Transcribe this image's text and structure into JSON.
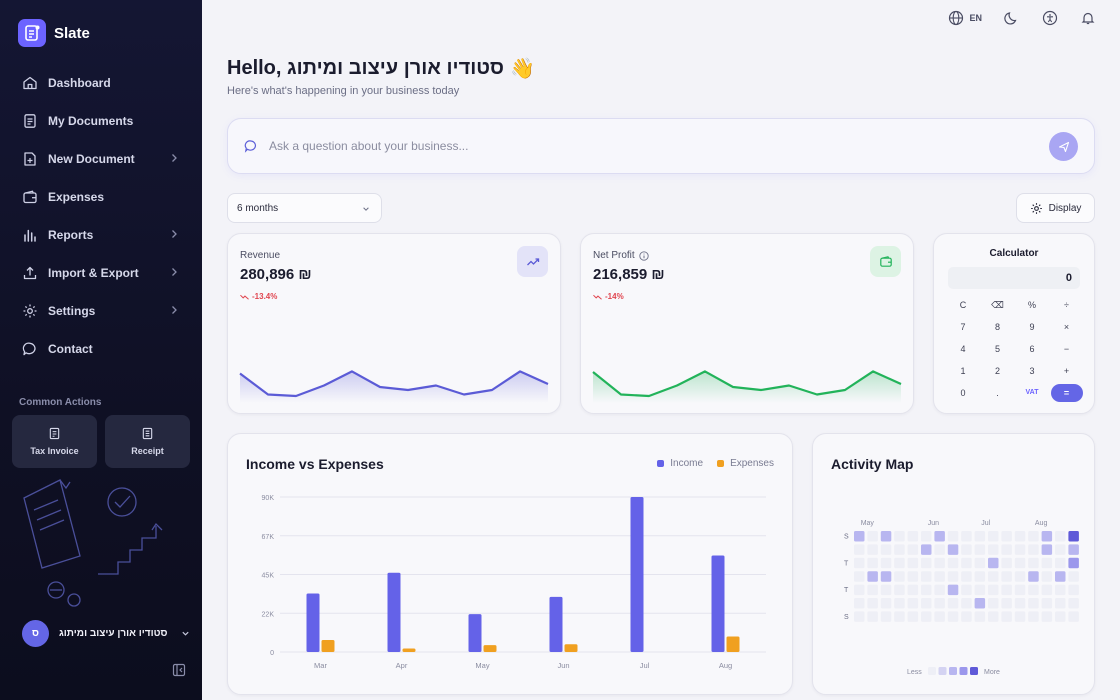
{
  "app": {
    "name": "Slate"
  },
  "sidebar": {
    "items": [
      {
        "label": "Dashboard",
        "icon": "home-icon",
        "chevron": false
      },
      {
        "label": "My Documents",
        "icon": "document-icon",
        "chevron": false
      },
      {
        "label": "New Document",
        "icon": "file-plus-icon",
        "chevron": true
      },
      {
        "label": "Expenses",
        "icon": "wallet-icon",
        "chevron": false
      },
      {
        "label": "Reports",
        "icon": "bar-chart-icon",
        "chevron": true
      },
      {
        "label": "Import & Export",
        "icon": "upload-icon",
        "chevron": true
      },
      {
        "label": "Settings",
        "icon": "gear-icon",
        "chevron": true
      },
      {
        "label": "Contact",
        "icon": "chat-icon",
        "chevron": false
      }
    ],
    "common_actions_title": "Common Actions",
    "actions": [
      {
        "label": "Tax Invoice",
        "icon": "invoice-icon"
      },
      {
        "label": "Receipt",
        "icon": "receipt-icon"
      }
    ],
    "user": {
      "initial": "ס",
      "name": "סטודיו אורן עיצוב ומיתוג"
    }
  },
  "topbar": {
    "language": "EN"
  },
  "header": {
    "greeting": "Hello, סטודיו אורן עיצוב ומיתוג",
    "emoji": "👋",
    "subtitle": "Here's what's happening in your business today"
  },
  "ask": {
    "placeholder": "Ask a question about your business..."
  },
  "filters": {
    "period": "6 months",
    "display_label": "Display"
  },
  "kpis": {
    "revenue": {
      "label": "Revenue",
      "value": "280,896 ₪",
      "change": "-13.4%",
      "trend": [
        0.85,
        0.15,
        0.1,
        0.45,
        0.92,
        0.4,
        0.3,
        0.45,
        0.15,
        0.3,
        0.92,
        0.5
      ],
      "color": "#5b5bd6"
    },
    "net_profit": {
      "label": "Net Profit",
      "value": "216,859 ₪",
      "change": "-14%",
      "trend": [
        0.9,
        0.15,
        0.1,
        0.45,
        0.92,
        0.4,
        0.3,
        0.45,
        0.15,
        0.3,
        0.92,
        0.5
      ],
      "color": "#22b35a"
    }
  },
  "calculator": {
    "title": "Calculator",
    "display": "0",
    "keys": [
      [
        "C",
        "⌫",
        "%",
        "÷"
      ],
      [
        "7",
        "8",
        "9",
        "×"
      ],
      [
        "4",
        "5",
        "6",
        "−"
      ],
      [
        "1",
        "2",
        "3",
        "+"
      ],
      [
        "0",
        ".",
        "VAT",
        "="
      ]
    ]
  },
  "income_chart": {
    "title": "Income vs Expenses",
    "legend": [
      "Income",
      "Expenses"
    ],
    "colors": {
      "income": "#6462e8",
      "expenses": "#f0a020"
    }
  },
  "chart_data": {
    "type": "bar",
    "categories": [
      "Mar",
      "Apr",
      "May",
      "Jun",
      "Jul",
      "Aug"
    ],
    "series": [
      {
        "name": "Income",
        "values": [
          34000,
          46000,
          22000,
          32000,
          90000,
          56000
        ]
      },
      {
        "name": "Expenses",
        "values": [
          7000,
          2000,
          4000,
          4500,
          0,
          9000
        ]
      }
    ],
    "y_ticks": [
      "0",
      "22K",
      "45K",
      "67K",
      "90K"
    ],
    "ylim": [
      0,
      90000
    ],
    "grid": true,
    "legend_position": "top-right"
  },
  "activity": {
    "title": "Activity Map",
    "months": [
      "May",
      "Jun",
      "Jul",
      "Aug"
    ],
    "day_labels": [
      "S",
      "T",
      "T",
      "S"
    ],
    "legend_less": "Less",
    "legend_more": "More",
    "cells": [
      {
        "c": 0,
        "r": 0,
        "l": 2
      },
      {
        "c": 2,
        "r": 0,
        "l": 2
      },
      {
        "c": 6,
        "r": 0,
        "l": 2
      },
      {
        "c": 14,
        "r": 0,
        "l": 2
      },
      {
        "c": 16,
        "r": 0,
        "l": 4
      },
      {
        "c": 5,
        "r": 1,
        "l": 2
      },
      {
        "c": 7,
        "r": 1,
        "l": 2
      },
      {
        "c": 14,
        "r": 1,
        "l": 2
      },
      {
        "c": 16,
        "r": 1,
        "l": 2
      },
      {
        "c": 10,
        "r": 2,
        "l": 2
      },
      {
        "c": 16,
        "r": 2,
        "l": 3
      },
      {
        "c": 1,
        "r": 3,
        "l": 2
      },
      {
        "c": 2,
        "r": 3,
        "l": 2
      },
      {
        "c": 13,
        "r": 3,
        "l": 2
      },
      {
        "c": 15,
        "r": 3,
        "l": 2
      },
      {
        "c": 7,
        "r": 4,
        "l": 2
      },
      {
        "c": 9,
        "r": 5,
        "l": 2
      }
    ]
  }
}
